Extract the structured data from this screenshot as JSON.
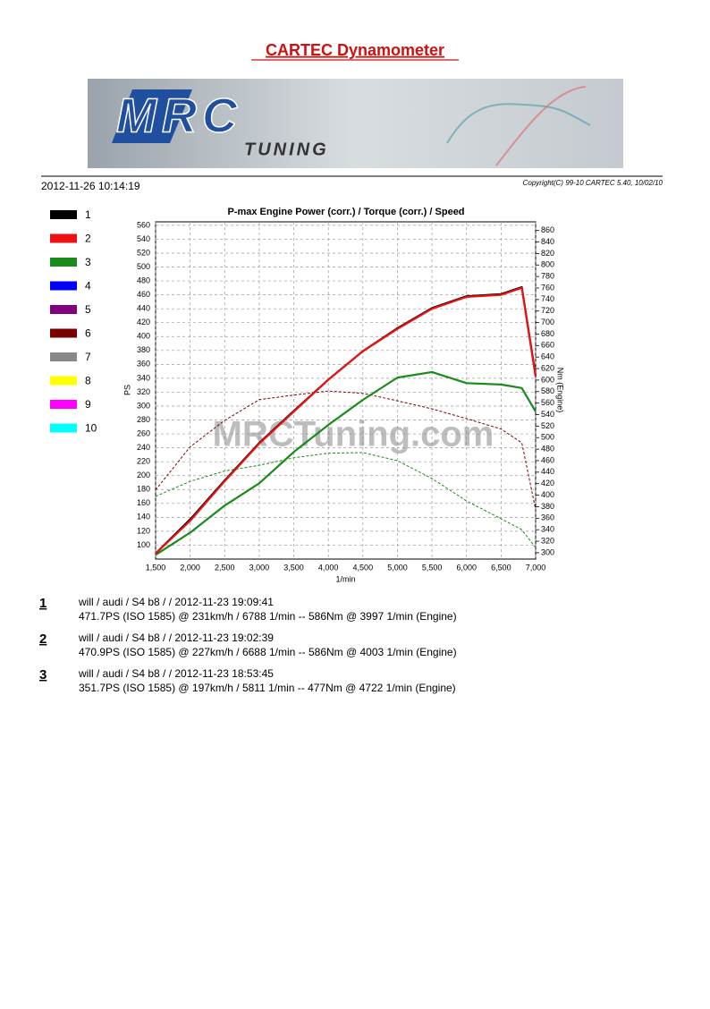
{
  "header": {
    "title": "CARTEC Dynamometer",
    "date": "2012-11-26 10:14:19",
    "copyright": "Copyright(C) 99-10 CARTEC 5.40, 10/02/10"
  },
  "logo": {
    "brand": "MRC",
    "sub": "TUNING"
  },
  "legend": [
    {
      "label": "1",
      "color": "#000000"
    },
    {
      "label": "2",
      "color": "#ee1111"
    },
    {
      "label": "3",
      "color": "#1a8a1a"
    },
    {
      "label": "4",
      "color": "#0000ff"
    },
    {
      "label": "5",
      "color": "#800080"
    },
    {
      "label": "6",
      "color": "#7a0000"
    },
    {
      "label": "7",
      "color": "#888888"
    },
    {
      "label": "8",
      "color": "#ffff00"
    },
    {
      "label": "9",
      "color": "#ff00ff"
    },
    {
      "label": "10",
      "color": "#00ffff"
    }
  ],
  "chart_data": {
    "type": "line",
    "title": "P-max Engine Power (corr.) / Torque (corr.) / Speed",
    "watermark": "MRCTuning.com",
    "x_label": "1/min",
    "y_label": "PS",
    "y2_label": "Nm (Engine)",
    "grid": true,
    "x": [
      1500,
      2000,
      2500,
      3000,
      3500,
      4000,
      4500,
      5000,
      5500,
      6000,
      6500,
      6800,
      7000
    ],
    "xlim": [
      1500,
      7000
    ],
    "xticks": [
      {
        "value": 1500,
        "label": "1,500"
      },
      {
        "value": 2000,
        "label": "2,000"
      },
      {
        "value": 2500,
        "label": "2,500"
      },
      {
        "value": 3000,
        "label": "3,000"
      },
      {
        "value": 3500,
        "label": "3,500"
      },
      {
        "value": 4000,
        "label": "4,000"
      },
      {
        "value": 4500,
        "label": "4,500"
      },
      {
        "value": 5000,
        "label": "5,000"
      },
      {
        "value": 5500,
        "label": "5,500"
      },
      {
        "value": 6000,
        "label": "6,000"
      },
      {
        "value": 6500,
        "label": "6,500"
      },
      {
        "value": 7000,
        "label": "7,000"
      }
    ],
    "ylim": [
      80,
      565
    ],
    "yticks": [
      100,
      120,
      140,
      160,
      180,
      200,
      220,
      240,
      260,
      280,
      300,
      320,
      340,
      360,
      380,
      400,
      420,
      440,
      460,
      480,
      500,
      520,
      540,
      560
    ],
    "y2lim": [
      289,
      875
    ],
    "y2ticks": [
      300,
      320,
      340,
      360,
      380,
      400,
      420,
      440,
      460,
      480,
      500,
      520,
      540,
      560,
      580,
      600,
      620,
      640,
      660,
      680,
      700,
      720,
      740,
      760,
      780,
      800,
      820,
      840,
      860
    ],
    "series": [
      {
        "color": "#7a0000",
        "dash": true,
        "axis": "y2",
        "values": [
          409,
          484,
          530,
          566,
          574,
          581,
          577,
          564,
          550,
          533,
          515,
          491,
          375
        ]
      },
      {
        "color": "#1a8a1a",
        "dash": true,
        "axis": "y2",
        "values": [
          398,
          424,
          442,
          452,
          465,
          473,
          474,
          460,
          429,
          390,
          359,
          340,
          309
        ]
      },
      {
        "color": "#1a8a1a",
        "dash": false,
        "values": [
          86,
          118,
          157,
          189,
          234,
          273,
          309,
          341,
          349,
          333,
          331,
          326,
          292
        ]
      },
      {
        "color": "#000000",
        "dash": false,
        "values": [
          88,
          137,
          193,
          247,
          293,
          338,
          379,
          412,
          441,
          458,
          461,
          471,
          344
        ]
      },
      {
        "color": "#ee1111",
        "dash": false,
        "values": [
          88,
          135,
          192,
          246,
          292,
          338,
          379,
          411,
          440,
          457,
          460,
          470,
          342
        ]
      }
    ]
  },
  "results": [
    {
      "num": "1",
      "line1": "will / audi / S4 b8 /  / 2012-11-23 19:09:41",
      "line2": "471.7PS (ISO 1585) @ 231km/h / 6788 1/min -- 586Nm @ 3997 1/min (Engine)"
    },
    {
      "num": "2",
      "line1": "will / audi / S4 b8 /  / 2012-11-23 19:02:39",
      "line2": "470.9PS (ISO 1585) @ 227km/h / 6688 1/min -- 586Nm @ 4003 1/min (Engine)"
    },
    {
      "num": "3",
      "line1": "will / audi / S4 b8 /  / 2012-11-23 18:53:45",
      "line2": "351.7PS (ISO 1585) @ 197km/h / 5811 1/min -- 477Nm @ 4722 1/min (Engine)"
    }
  ]
}
